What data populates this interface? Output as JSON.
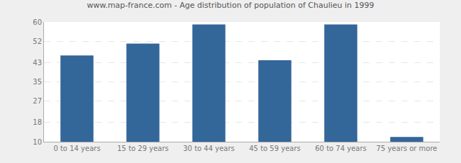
{
  "chart_data": {
    "type": "bar",
    "title": "www.map-france.com - Age distribution of population of Chaulieu in 1999",
    "categories": [
      "0 to 14 years",
      "15 to 29 years",
      "30 to 44 years",
      "45 to 59 years",
      "60 to 74 years",
      "75 years or more"
    ],
    "values": [
      46,
      51,
      59,
      44,
      59,
      12
    ],
    "color": "#336699",
    "ylim": [
      10,
      60
    ],
    "yticks": [
      10,
      18,
      27,
      35,
      43,
      52,
      60
    ],
    "grid": true
  }
}
